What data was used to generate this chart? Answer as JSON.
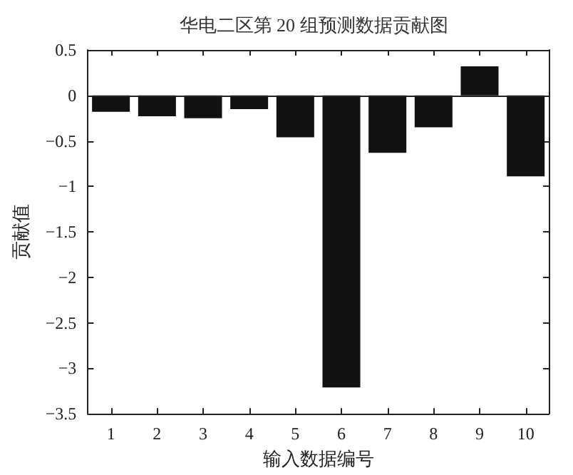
{
  "chart_data": {
    "type": "bar",
    "title": "华电二区第 20 组预测数据贡献图",
    "xlabel": "输入数据编号",
    "ylabel": "贡献值",
    "categories": [
      "1",
      "2",
      "3",
      "4",
      "5",
      "6",
      "7",
      "8",
      "9",
      "10"
    ],
    "values": [
      -0.18,
      -0.23,
      -0.25,
      -0.15,
      -0.46,
      -3.21,
      -0.63,
      -0.35,
      0.32,
      -0.89
    ],
    "color": "#111111",
    "ylim": [
      -3.5,
      0.5
    ],
    "yticks": [
      -3.5,
      -3,
      -2.5,
      -2,
      -1.5,
      -1,
      -0.5,
      0,
      0.5
    ],
    "grid": false,
    "ref_lines": [
      {
        "axis": "y",
        "value": 0,
        "color": "#222222",
        "line_style": "solid"
      }
    ]
  }
}
